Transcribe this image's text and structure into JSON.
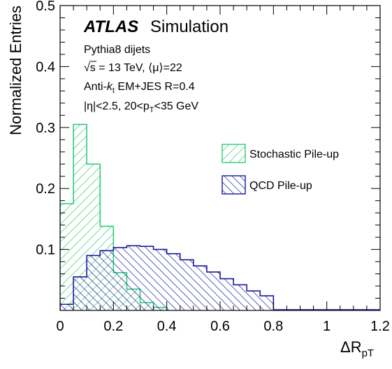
{
  "chart_data": {
    "type": "histogram",
    "experiment": "ATLAS",
    "label": "Simulation",
    "info_lines": {
      "generator": "Pythia8 dijets",
      "sqrt": "√s",
      "energy": " = 13 TeV, ⟨μ⟩=22",
      "antik_pre": "Anti-",
      "antik_k": "k",
      "antik_sub": "t",
      "antik_post": " EM+JES R=0.4",
      "eta_pre": "|η|<2.5, 20<p",
      "eta_sub": "T",
      "eta_post": "<35 GeV"
    },
    "ylabel": "Normalized Entries",
    "xlabel_main": "ΔR",
    "xlabel_sub": "pT",
    "xlim": [
      0,
      1.2
    ],
    "ylim": [
      0,
      0.5
    ],
    "x_ticks": [
      "0",
      "0.2",
      "0.4",
      "0.6",
      "0.8",
      "1",
      "1.2"
    ],
    "y_ticks": [
      "0.1",
      "0.2",
      "0.3",
      "0.4",
      "0.5"
    ],
    "bin_width": 0.05,
    "series": [
      {
        "name": "Stochastic Pile-up",
        "color": "#2ecc7a",
        "hatch": "forward",
        "values": [
          0.175,
          0.305,
          0.24,
          0.138,
          0.062,
          0.035,
          0.013,
          0.005
        ]
      },
      {
        "name": "QCD Pile-up",
        "color": "#1a1aa0",
        "hatch": "backward",
        "values": [
          0.01,
          0.055,
          0.09,
          0.098,
          0.103,
          0.106,
          0.105,
          0.1,
          0.093,
          0.083,
          0.073,
          0.063,
          0.052,
          0.042,
          0.032,
          0.024
        ]
      }
    ]
  }
}
